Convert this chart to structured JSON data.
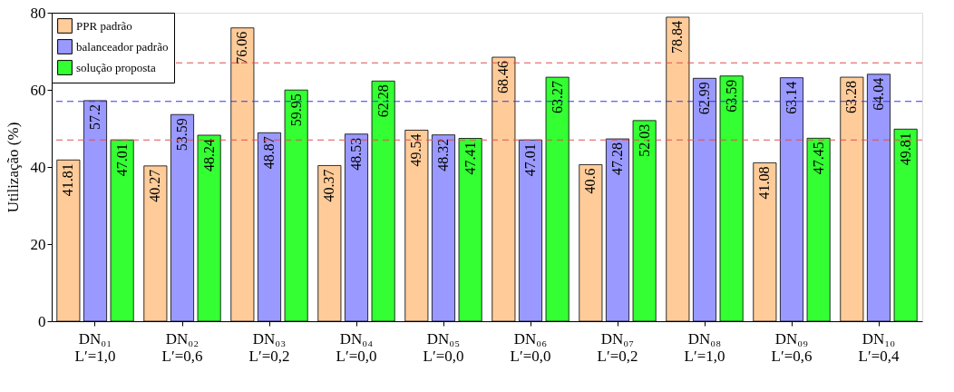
{
  "chart_data": {
    "type": "bar",
    "ylabel": "Utilização (%)",
    "categories": [
      "DN₀₁\nL′=1,0",
      "DN₀₂\nL′=0,6",
      "DN₀₃\nL′=0,2",
      "DN₀₄\nL′=0,0",
      "DN₀₅\nL′=0,0",
      "DN₀₆\nL′=0,0",
      "DN₀₇\nL′=0,2",
      "DN₀₈\nL′=1,0",
      "DN₀₉\nL′=0,6",
      "DN₁₀\nL′=0,4"
    ],
    "series": [
      {
        "name": "PPR padrão",
        "color": "#ffcc99",
        "values": [
          41.81,
          40.27,
          76.06,
          40.37,
          49.54,
          68.46,
          40.6,
          78.84,
          41.08,
          63.28
        ]
      },
      {
        "name": "balanceador padrão",
        "color": "#9999ff",
        "values": [
          57.2,
          53.59,
          48.87,
          48.53,
          48.32,
          47.01,
          47.28,
          62.99,
          63.14,
          64.04
        ]
      },
      {
        "name": "solução proposta",
        "color": "#33ff33",
        "values": [
          47.01,
          48.24,
          59.95,
          62.28,
          47.41,
          63.27,
          52.03,
          63.59,
          47.45,
          49.81
        ]
      }
    ],
    "ylim": [
      0,
      80
    ],
    "yticks": [
      0,
      20,
      40,
      60,
      80
    ],
    "grid": false,
    "legend": "top left",
    "data_labels": true,
    "ref_lines": [
      {
        "axis": "y",
        "value": 67,
        "color": "#e05050",
        "line_style": "dashed"
      },
      {
        "axis": "y",
        "value": 57,
        "color": "#3333ff",
        "line_style": "dashed"
      },
      {
        "axis": "y",
        "value": 47,
        "color": "#e05050",
        "line_style": "dashed"
      }
    ]
  }
}
